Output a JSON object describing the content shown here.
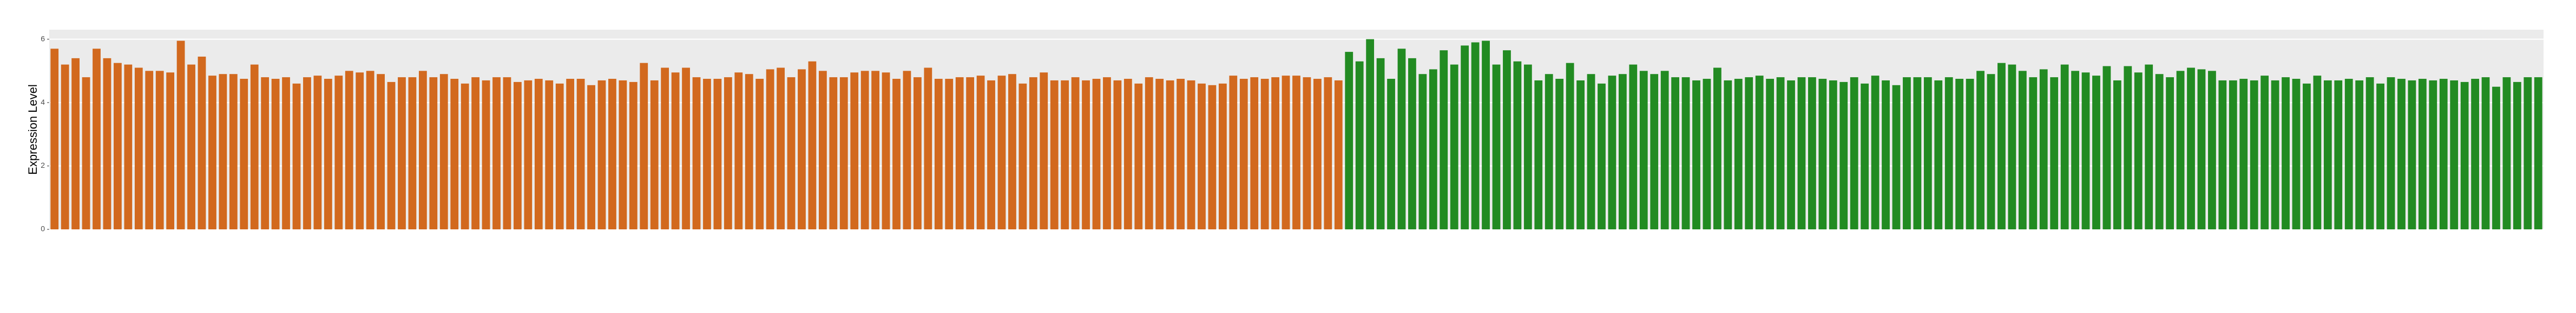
{
  "chart_data": {
    "type": "bar",
    "y_label": "Expression Level",
    "ylim": [
      0,
      6.3
    ],
    "yticks": [
      0,
      2,
      4,
      6
    ],
    "grid": true,
    "series": [
      {
        "color": "#d2691e",
        "values": [
          5.7,
          5.2,
          5.4,
          4.8,
          5.7,
          5.4,
          5.25,
          5.2,
          5.1,
          5.0,
          5.0,
          4.95,
          5.95,
          5.2,
          5.45,
          4.85,
          4.9,
          4.9,
          4.75,
          5.2,
          4.8,
          4.75,
          4.8,
          4.6,
          4.8,
          4.85,
          4.75,
          4.85,
          5.0,
          4.95,
          5.0,
          4.9,
          4.65,
          4.8,
          4.8,
          5.0,
          4.8,
          4.9,
          4.75,
          4.6,
          4.8,
          4.7,
          4.8,
          4.8,
          4.65,
          4.7,
          4.75,
          4.7,
          4.6,
          4.75,
          4.75,
          4.55,
          4.7,
          4.75,
          4.7,
          4.65,
          5.25,
          4.7,
          5.1,
          4.95,
          5.1,
          4.8,
          4.75,
          4.75,
          4.8,
          4.95,
          4.9,
          4.75,
          5.05,
          5.1,
          4.8,
          5.05,
          5.3,
          5.0,
          4.8,
          4.8,
          4.95,
          5.0,
          5.0,
          4.95,
          4.75,
          5.0,
          4.8,
          5.1,
          4.75,
          4.75,
          4.8,
          4.8,
          4.85,
          4.7,
          4.85,
          4.9,
          4.6,
          4.8,
          4.95,
          4.7,
          4.7,
          4.8,
          4.7,
          4.75,
          4.8,
          4.7,
          4.75,
          4.6,
          4.8,
          4.75,
          4.7,
          4.75,
          4.7,
          4.6,
          4.55,
          4.6,
          4.85,
          4.75,
          4.8,
          4.75,
          4.8,
          4.85,
          4.85,
          4.8,
          4.75,
          4.8,
          4.7
        ]
      },
      {
        "color": "#228b22",
        "values": [
          5.6,
          5.3,
          6.0,
          5.4,
          4.75,
          5.7,
          5.4,
          4.9,
          5.05,
          5.65,
          5.2,
          5.8,
          5.9,
          5.95,
          5.2,
          5.65,
          5.3,
          5.2,
          4.7,
          4.9,
          4.75,
          5.25,
          4.7,
          4.9,
          4.6,
          4.85,
          4.9,
          5.2,
          5.0,
          4.9,
          5.0,
          4.8,
          4.8,
          4.7,
          4.75,
          5.1,
          4.7,
          4.75,
          4.8,
          4.85,
          4.75,
          4.8,
          4.7,
          4.8,
          4.8,
          4.75,
          4.7,
          4.65,
          4.8,
          4.6,
          4.85,
          4.7,
          4.55,
          4.8,
          4.8,
          4.8,
          4.7,
          4.8,
          4.75,
          4.75,
          5.0,
          4.9,
          5.25,
          5.2,
          5.0,
          4.8,
          5.05,
          4.8,
          5.2,
          5.0,
          4.95,
          4.85,
          5.15,
          4.7,
          5.15,
          4.95,
          5.2,
          4.9,
          4.8,
          5.0,
          5.1,
          5.05,
          5.0,
          4.7,
          4.7,
          4.75,
          4.7,
          4.85,
          4.7,
          4.8,
          4.75,
          4.6,
          4.85,
          4.7,
          4.7,
          4.75,
          4.7,
          4.8,
          4.6,
          4.8,
          4.75,
          4.7,
          4.75,
          4.7,
          4.75,
          4.7,
          4.65,
          4.75,
          4.8,
          4.5,
          4.8,
          4.65,
          4.8,
          4.8
        ]
      }
    ]
  }
}
